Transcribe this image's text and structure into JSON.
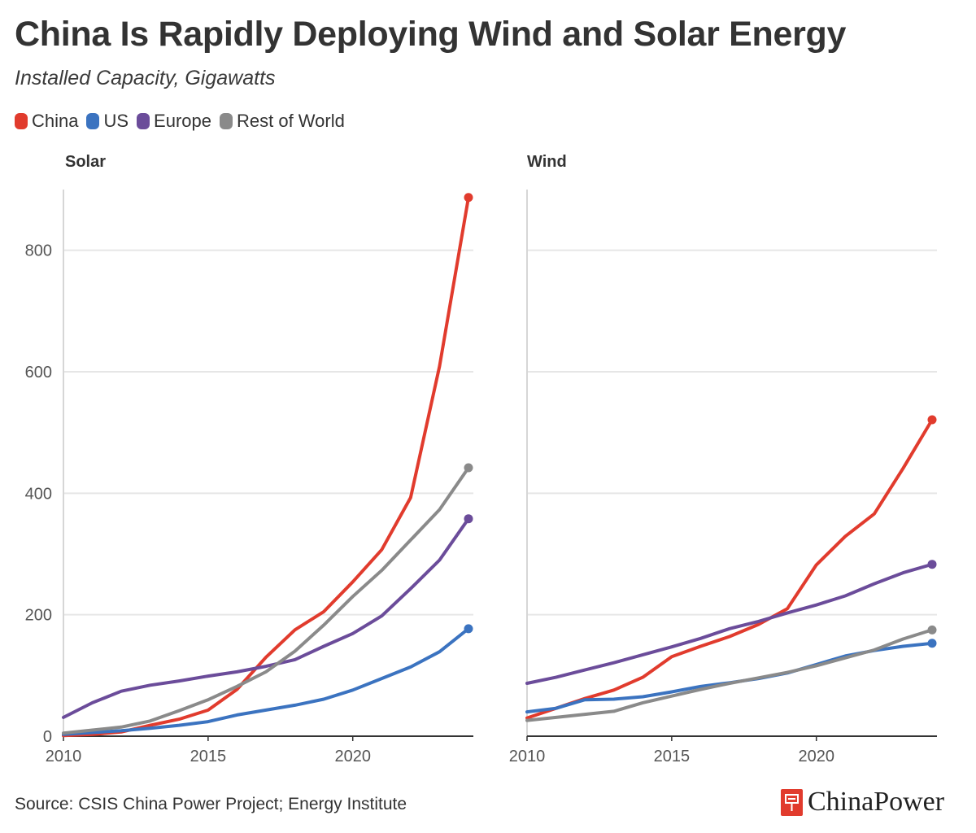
{
  "title": "China Is Rapidly Deploying Wind and Solar Energy",
  "subtitle": "Installed Capacity, Gigawatts",
  "legend": [
    {
      "label": "China",
      "color": "#e13b2d"
    },
    {
      "label": "US",
      "color": "#3b73c0"
    },
    {
      "label": "Europe",
      "color": "#6b4c9a"
    },
    {
      "label": "Rest of World",
      "color": "#8a8a8a"
    }
  ],
  "source": "Source: CSIS China Power Project; Energy Institute",
  "brand": "ChinaPower",
  "chart_data": [
    {
      "type": "line",
      "title": "Solar",
      "xlabel": "",
      "ylabel": "",
      "xlim": [
        2010,
        2024
      ],
      "ylim": [
        0,
        900
      ],
      "xticks": [
        2010,
        2015,
        2020
      ],
      "yticks": [
        0,
        200,
        400,
        600,
        800
      ],
      "grid": true,
      "x": [
        2010,
        2011,
        2012,
        2013,
        2014,
        2015,
        2016,
        2017,
        2018,
        2019,
        2020,
        2021,
        2022,
        2023,
        2024
      ],
      "series": [
        {
          "name": "China",
          "color": "#e13b2d",
          "values": [
            1,
            3,
            7,
            18,
            28,
            43,
            77,
            130,
            175,
            205,
            254,
            307,
            393,
            609,
            887
          ]
        },
        {
          "name": "US",
          "color": "#3b73c0",
          "values": [
            3,
            6,
            9,
            13,
            18,
            24,
            35,
            43,
            51,
            61,
            76,
            95,
            114,
            139,
            177
          ]
        },
        {
          "name": "Europe",
          "color": "#6b4c9a",
          "values": [
            31,
            55,
            74,
            84,
            91,
            99,
            106,
            115,
            126,
            148,
            169,
            198,
            243,
            290,
            358
          ]
        },
        {
          "name": "Rest of World",
          "color": "#8a8a8a",
          "values": [
            5,
            10,
            15,
            25,
            42,
            60,
            82,
            106,
            140,
            183,
            230,
            273,
            323,
            373,
            442
          ]
        }
      ]
    },
    {
      "type": "line",
      "title": "Wind",
      "xlabel": "",
      "ylabel": "",
      "xlim": [
        2010,
        2024
      ],
      "ylim": [
        0,
        900
      ],
      "xticks": [
        2010,
        2015,
        2020
      ],
      "yticks": [
        0,
        200,
        400,
        600,
        800
      ],
      "grid": true,
      "x": [
        2010,
        2011,
        2012,
        2013,
        2014,
        2015,
        2016,
        2017,
        2018,
        2019,
        2020,
        2021,
        2022,
        2023,
        2024
      ],
      "series": [
        {
          "name": "China",
          "color": "#e13b2d",
          "values": [
            30,
            46,
            62,
            76,
            97,
            131,
            148,
            164,
            184,
            210,
            282,
            329,
            366,
            441,
            521
          ]
        },
        {
          "name": "US",
          "color": "#3b73c0",
          "values": [
            40,
            46,
            60,
            61,
            65,
            73,
            82,
            88,
            95,
            104,
            118,
            132,
            141,
            148,
            153
          ]
        },
        {
          "name": "Europe",
          "color": "#6b4c9a",
          "values": [
            87,
            97,
            109,
            121,
            134,
            147,
            161,
            177,
            189,
            203,
            216,
            231,
            251,
            269,
            283
          ]
        },
        {
          "name": "Rest of World",
          "color": "#8a8a8a",
          "values": [
            26,
            31,
            36,
            41,
            55,
            66,
            77,
            87,
            96,
            105,
            116,
            129,
            142,
            160,
            175
          ]
        }
      ]
    }
  ]
}
